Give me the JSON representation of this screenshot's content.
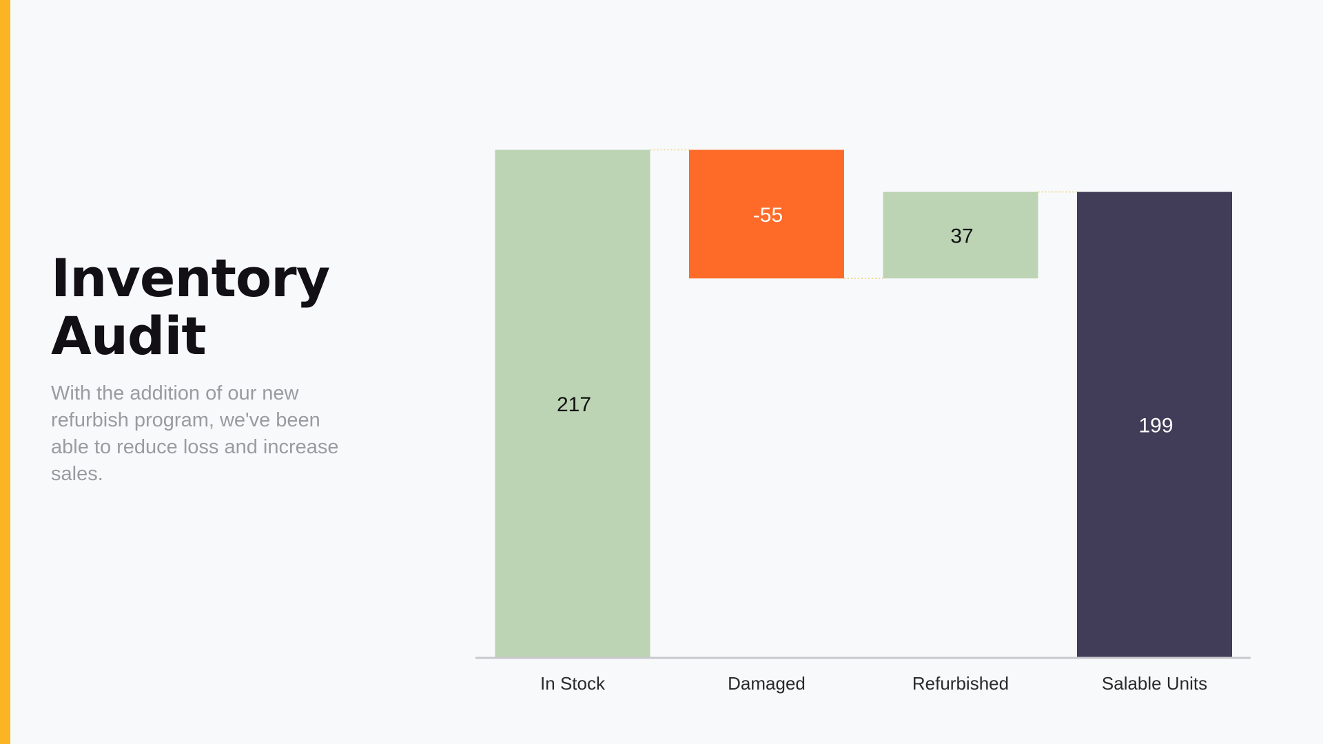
{
  "slide": {
    "title_line1": "Inventory",
    "title_line2": "Audit",
    "description": "With the addition of our new refurbish program, we've been able to reduce loss and increase sales.",
    "accent_color": "#fbb424"
  },
  "chart_data": {
    "type": "bar",
    "subtype": "waterfall",
    "categories": [
      "In Stock",
      "Damaged",
      "Refurbished",
      "Salable Units"
    ],
    "values": [
      217,
      -55,
      37,
      199
    ],
    "value_labels": [
      "217",
      "-55",
      "37",
      "199"
    ],
    "bar_kinds": [
      "total",
      "delta",
      "delta",
      "total"
    ],
    "colors": {
      "increase": "#bcd4b3",
      "decrease": "#fe6b28",
      "total_final": "#413c57",
      "axis": "#c9c9cc",
      "connector": "#f0d27a"
    },
    "label_colors": [
      "#111111",
      "#ffffff",
      "#111111",
      "#ffffff"
    ],
    "ylim": [
      0,
      217
    ],
    "grid": false,
    "legend": "none",
    "title": "",
    "xlabel": "",
    "ylabel": ""
  }
}
